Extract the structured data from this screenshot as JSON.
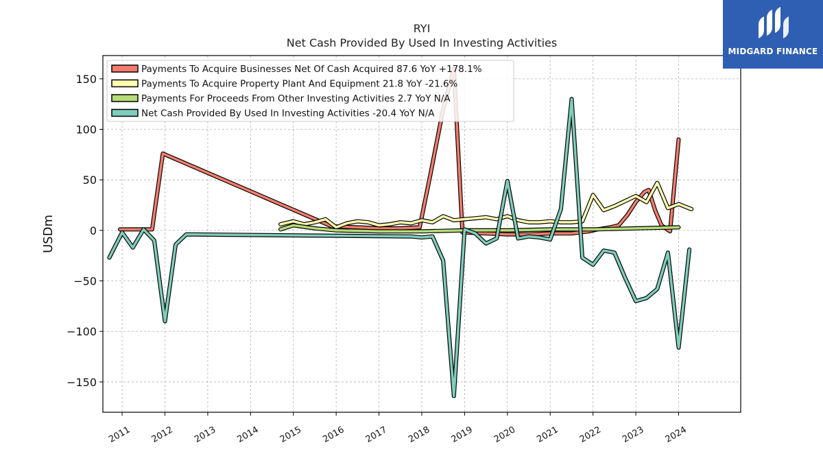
{
  "brand": {
    "name": "MIDGARD FINANCE",
    "bg_color": "#2f5fb3"
  },
  "chart_data": {
    "type": "line",
    "title": "RYI",
    "subtitle": "Net Cash Provided By Used In Investing Activities",
    "xlabel": "",
    "ylabel": "USDm",
    "xlim": [
      2010.55,
      2025.45
    ],
    "ylim": [
      -180,
      173
    ],
    "yticks": [
      150,
      100,
      50,
      0,
      -50,
      -100,
      -150
    ],
    "ytick_labels": [
      "150",
      "100",
      "50",
      "0",
      "−50",
      "−100",
      "−150"
    ],
    "xticks": [
      2011,
      2012,
      2013,
      2014,
      2015,
      2016,
      2017,
      2018,
      2019,
      2020,
      2021,
      2022,
      2023,
      2024
    ],
    "xtick_labels": [
      "2011",
      "2012",
      "2013",
      "2014",
      "2015",
      "2016",
      "2017",
      "2018",
      "2019",
      "2020",
      "2021",
      "2022",
      "2023",
      "2024"
    ],
    "grid": true,
    "legend_position": "top-left",
    "series": [
      {
        "name": "Payments To Acquire Businesses Net Of Cash Acquired",
        "legend": "Payments To Acquire Businesses Net Of Cash Acquired  87.6 YoY +178.1%",
        "color": "#f47c6e",
        "points": [
          [
            2010.95,
            1
          ],
          [
            2011.2,
            1
          ],
          [
            2011.45,
            1
          ],
          [
            2011.7,
            1
          ],
          [
            2011.95,
            76
          ],
          [
            2015.9,
            4
          ],
          [
            2016.5,
            3
          ],
          [
            2017.0,
            2
          ],
          [
            2017.5,
            2
          ],
          [
            2017.95,
            3
          ],
          [
            2018.2,
            55
          ],
          [
            2018.5,
            120
          ],
          [
            2018.75,
            160
          ],
          [
            2018.95,
            -2
          ],
          [
            2019.5,
            -3
          ],
          [
            2020.0,
            -4
          ],
          [
            2020.5,
            -4
          ],
          [
            2021.0,
            -3
          ],
          [
            2021.5,
            -3
          ],
          [
            2021.9,
            -1
          ],
          [
            2022.1,
            1
          ],
          [
            2022.4,
            3
          ],
          [
            2022.6,
            5
          ],
          [
            2022.8,
            15
          ],
          [
            2023.0,
            28
          ],
          [
            2023.2,
            38
          ],
          [
            2023.3,
            40
          ],
          [
            2023.45,
            20
          ],
          [
            2023.6,
            5
          ],
          [
            2023.8,
            -1
          ],
          [
            2024.0,
            90
          ]
        ]
      },
      {
        "name": "Payments To Acquire Property Plant And Equipment",
        "legend": "Payments To Acquire Property Plant And Equipment  21.8 YoY -21.6%",
        "color": "#fdfcb0",
        "points": [
          [
            2014.7,
            6
          ],
          [
            2015.0,
            9
          ],
          [
            2015.25,
            6
          ],
          [
            2015.5,
            8
          ],
          [
            2015.75,
            11
          ],
          [
            2016.0,
            3
          ],
          [
            2016.25,
            7
          ],
          [
            2016.5,
            9
          ],
          [
            2016.75,
            8
          ],
          [
            2017.0,
            5
          ],
          [
            2017.25,
            6
          ],
          [
            2017.5,
            8
          ],
          [
            2017.75,
            7
          ],
          [
            2018.0,
            10
          ],
          [
            2018.25,
            8
          ],
          [
            2018.5,
            14
          ],
          [
            2018.75,
            10
          ],
          [
            2019.0,
            11
          ],
          [
            2019.25,
            12
          ],
          [
            2019.5,
            13
          ],
          [
            2019.75,
            11
          ],
          [
            2020.0,
            14
          ],
          [
            2020.25,
            10
          ],
          [
            2020.5,
            8
          ],
          [
            2020.75,
            8
          ],
          [
            2021.0,
            9
          ],
          [
            2021.25,
            8
          ],
          [
            2021.5,
            8
          ],
          [
            2021.75,
            9
          ],
          [
            2022.0,
            35
          ],
          [
            2022.25,
            20
          ],
          [
            2022.5,
            24
          ],
          [
            2022.75,
            29
          ],
          [
            2023.0,
            34
          ],
          [
            2023.25,
            28
          ],
          [
            2023.5,
            47
          ],
          [
            2023.75,
            22
          ],
          [
            2024.0,
            26
          ],
          [
            2024.3,
            21
          ]
        ]
      },
      {
        "name": "Payments For Proceeds From Other Investing Activities",
        "legend": "Payments For Proceeds From Other Investing Activities  2.7 YoY N/A",
        "color": "#b4dc78",
        "points": [
          [
            2014.7,
            1
          ],
          [
            2015.0,
            5
          ],
          [
            2015.5,
            2
          ],
          [
            2016.0,
            0
          ],
          [
            2017.0,
            -1
          ],
          [
            2018.0,
            -1
          ],
          [
            2019.0,
            0
          ],
          [
            2020.0,
            0
          ],
          [
            2021.0,
            1
          ],
          [
            2022.0,
            1
          ],
          [
            2023.0,
            2
          ],
          [
            2024.0,
            3
          ]
        ]
      },
      {
        "name": "Net Cash Provided By Used In Investing Activities",
        "legend": "Net Cash Provided By Used In Investing Activities  -20.4 YoY N/A",
        "color": "#7fcdbb",
        "points": [
          [
            2010.7,
            -27
          ],
          [
            2011.0,
            -2
          ],
          [
            2011.25,
            -17
          ],
          [
            2011.5,
            1
          ],
          [
            2011.75,
            -10
          ],
          [
            2012.0,
            -90
          ],
          [
            2012.25,
            -14
          ],
          [
            2012.5,
            -4
          ],
          [
            2017.75,
            -6
          ],
          [
            2018.0,
            -7
          ],
          [
            2018.25,
            -6
          ],
          [
            2018.5,
            -30
          ],
          [
            2018.75,
            -164
          ],
          [
            2019.0,
            1
          ],
          [
            2019.25,
            -3
          ],
          [
            2019.5,
            -13
          ],
          [
            2019.75,
            -8
          ],
          [
            2020.0,
            49
          ],
          [
            2020.25,
            -8
          ],
          [
            2020.5,
            -6
          ],
          [
            2020.75,
            -7
          ],
          [
            2021.0,
            -9
          ],
          [
            2021.25,
            21
          ],
          [
            2021.5,
            130
          ],
          [
            2021.75,
            -27
          ],
          [
            2022.0,
            -34
          ],
          [
            2022.25,
            -20
          ],
          [
            2022.5,
            -22
          ],
          [
            2022.75,
            -47
          ],
          [
            2023.0,
            -70
          ],
          [
            2023.25,
            -67
          ],
          [
            2023.5,
            -58
          ],
          [
            2023.75,
            -22
          ],
          [
            2024.0,
            -116
          ],
          [
            2024.25,
            -19
          ]
        ]
      }
    ]
  }
}
